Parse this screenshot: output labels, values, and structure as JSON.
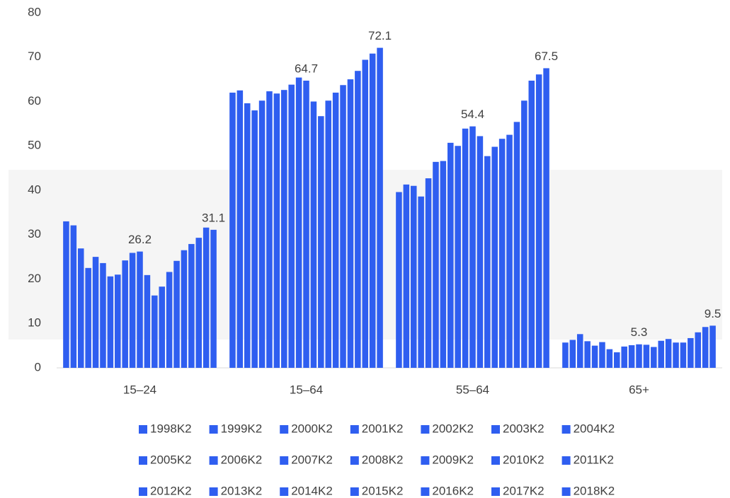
{
  "chart_data": {
    "type": "bar",
    "categories": [
      "15–24",
      "15–64",
      "55–64",
      "65+"
    ],
    "ylim": [
      0,
      80
    ],
    "yticks": [
      0,
      10,
      20,
      30,
      40,
      50,
      60,
      70,
      80
    ],
    "series": [
      {
        "name": "1998K2",
        "color": "#2f5ef0",
        "values": [
          33.0,
          62.0,
          39.6,
          5.7
        ]
      },
      {
        "name": "1999K2",
        "color": "#2f5ef0",
        "values": [
          32.1,
          62.5,
          41.3,
          6.3
        ]
      },
      {
        "name": "2000K2",
        "color": "#2f5ef0",
        "values": [
          26.9,
          59.6,
          41.0,
          7.6
        ]
      },
      {
        "name": "2001K2",
        "color": "#2f5ef0",
        "values": [
          22.5,
          58.0,
          38.6,
          6.0
        ]
      },
      {
        "name": "2002K2",
        "color": "#2f5ef0",
        "values": [
          25.0,
          60.2,
          42.7,
          5.0
        ]
      },
      {
        "name": "2003K2",
        "color": "#2f5ef0",
        "values": [
          23.6,
          62.3,
          46.4,
          5.8
        ]
      },
      {
        "name": "2004K2",
        "color": "#2f5ef0",
        "values": [
          20.6,
          61.8,
          46.6,
          4.2
        ]
      },
      {
        "name": "2005K2",
        "color": "#2f5ef0",
        "values": [
          21.0,
          62.6,
          50.7,
          3.5
        ]
      },
      {
        "name": "2006K2",
        "color": "#2f5ef0",
        "values": [
          24.2,
          63.8,
          50.0,
          4.8
        ]
      },
      {
        "name": "2007K2",
        "color": "#2f5ef0",
        "values": [
          25.9,
          65.4,
          53.9,
          5.1
        ]
      },
      {
        "name": "2008K2",
        "color": "#2f5ef0",
        "values": [
          26.2,
          64.7,
          54.4,
          5.3
        ],
        "labels": true
      },
      {
        "name": "2009K2",
        "color": "#2f5ef0",
        "values": [
          20.9,
          60.0,
          52.2,
          5.2
        ]
      },
      {
        "name": "2010K2",
        "color": "#2f5ef0",
        "values": [
          16.3,
          56.7,
          47.7,
          4.7
        ]
      },
      {
        "name": "2011K2",
        "color": "#2f5ef0",
        "values": [
          18.3,
          60.2,
          49.8,
          6.1
        ]
      },
      {
        "name": "2012K2",
        "color": "#2f5ef0",
        "values": [
          21.6,
          62.0,
          51.6,
          6.5
        ]
      },
      {
        "name": "2013K2",
        "color": "#2f5ef0",
        "values": [
          24.1,
          63.7,
          52.5,
          5.7
        ]
      },
      {
        "name": "2014K2",
        "color": "#2f5ef0",
        "values": [
          26.5,
          65.0,
          55.4,
          5.7
        ]
      },
      {
        "name": "2015K2",
        "color": "#2f5ef0",
        "values": [
          27.9,
          66.9,
          60.2,
          6.7
        ]
      },
      {
        "name": "2016K2",
        "color": "#2f5ef0",
        "values": [
          29.3,
          69.4,
          64.7,
          8.0
        ]
      },
      {
        "name": "2017K2",
        "color": "#2f5ef0",
        "values": [
          31.6,
          70.8,
          66.1,
          9.2
        ]
      },
      {
        "name": "2018K2",
        "color": "#2f5ef0",
        "values": [
          31.1,
          72.1,
          67.5,
          9.5
        ],
        "labels": true
      }
    ]
  }
}
